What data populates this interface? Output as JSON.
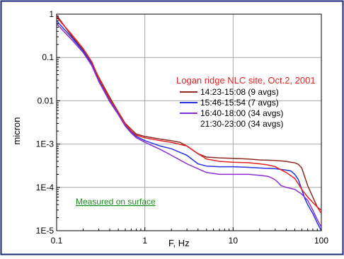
{
  "chart_data": {
    "type": "line",
    "title": "Logan ridge NLC site, Oct.2, 2001",
    "xlabel": "F, Hz",
    "ylabel": "micron",
    "xscale": "log",
    "yscale": "log",
    "xlim": [
      0.1,
      100
    ],
    "ylim": [
      1e-05,
      1
    ],
    "x_ticks": [
      {
        "value": 0.1,
        "label": "0.1"
      },
      {
        "value": 1,
        "label": "1"
      },
      {
        "value": 10,
        "label": "10"
      },
      {
        "value": 100,
        "label": "100"
      }
    ],
    "y_ticks": [
      {
        "value": 1,
        "label": "1"
      },
      {
        "value": 0.1,
        "label": "0.1"
      },
      {
        "value": 0.01,
        "label": "0.01"
      },
      {
        "value": 0.001,
        "label": "1E-3"
      },
      {
        "value": 0.0001,
        "label": "1E-4"
      },
      {
        "value": 1e-05,
        "label": "1E-5"
      }
    ],
    "grid": true,
    "legend_placement": "top-right",
    "annotation": "Measured on surface",
    "series": [
      {
        "name": "14:23-15:08 (9 avgs)",
        "color": "#8b2a22",
        "x": [
          0.1,
          0.15,
          0.2,
          0.25,
          0.3,
          0.4,
          0.5,
          0.6,
          0.7,
          0.8,
          1.0,
          1.5,
          2.0,
          2.5,
          3.0,
          4.0,
          5.0,
          7.0,
          10,
          15,
          20,
          30,
          40,
          45,
          50,
          55,
          60,
          70,
          80,
          90,
          100
        ],
        "y": [
          0.95,
          0.3,
          0.15,
          0.075,
          0.035,
          0.012,
          0.0055,
          0.003,
          0.0022,
          0.0017,
          0.0015,
          0.0013,
          0.0012,
          0.0011,
          0.0009,
          0.0006,
          0.0005,
          0.00048,
          0.00047,
          0.00045,
          0.00043,
          0.00042,
          0.0004,
          0.00038,
          0.00037,
          0.00034,
          0.00028,
          0.00011,
          6e-05,
          3.5e-05,
          3e-05
        ]
      },
      {
        "name": "15:46-15:54 (7 avgs)",
        "color": "#2833e0",
        "x": [
          0.1,
          0.15,
          0.2,
          0.25,
          0.3,
          0.4,
          0.5,
          0.6,
          0.7,
          0.8,
          1.0,
          1.5,
          2.0,
          3.0,
          4.0,
          5.0,
          7.0,
          10,
          15,
          20,
          30,
          40,
          45,
          50,
          55,
          60,
          65,
          70,
          80,
          90,
          100
        ],
        "y": [
          0.7,
          0.28,
          0.14,
          0.07,
          0.03,
          0.01,
          0.005,
          0.0027,
          0.0019,
          0.0015,
          0.0012,
          0.0009,
          0.00078,
          0.00055,
          0.00035,
          0.00031,
          0.0003,
          0.0003,
          0.00029,
          0.00028,
          0.00027,
          0.00025,
          0.00024,
          0.0002,
          0.00015,
          9e-05,
          5.5e-05,
          4e-05,
          2.5e-05,
          1.5e-05,
          1e-05
        ]
      },
      {
        "name": "16:40-18:00 (34 avgs)",
        "color": "#8a2fcf",
        "x": [
          0.1,
          0.15,
          0.2,
          0.25,
          0.3,
          0.4,
          0.5,
          0.6,
          0.7,
          0.8,
          1.0,
          1.5,
          2.0,
          3.0,
          4.0,
          5.0,
          7.0,
          10,
          15,
          20,
          25,
          30,
          35,
          40,
          50,
          60,
          70,
          80,
          90,
          100
        ],
        "y": [
          0.6,
          0.25,
          0.13,
          0.065,
          0.028,
          0.0095,
          0.0048,
          0.0026,
          0.0018,
          0.0014,
          0.0011,
          0.00075,
          0.00055,
          0.00035,
          0.00027,
          0.00022,
          0.0002,
          0.0002,
          0.0002,
          0.00019,
          0.00018,
          0.00015,
          0.00011,
          0.0001,
          9e-05,
          7e-05,
          5e-05,
          3e-05,
          1.8e-05,
          1.2e-05
        ]
      },
      {
        "name": "21:30-23:00 (34 avgs)",
        "color": "#e32222",
        "x": [
          0.1,
          0.15,
          0.2,
          0.25,
          0.3,
          0.4,
          0.5,
          0.6,
          0.7,
          0.8,
          1.0,
          1.5,
          2.0,
          3.0,
          4.0,
          5.0,
          7.0,
          10,
          15,
          20,
          25,
          30,
          40,
          50,
          55,
          60,
          70,
          80,
          90,
          100
        ],
        "y": [
          0.85,
          0.33,
          0.16,
          0.08,
          0.033,
          0.011,
          0.0055,
          0.0029,
          0.002,
          0.0016,
          0.0014,
          0.0012,
          0.0011,
          0.0009,
          0.0006,
          0.00045,
          0.0004,
          0.00038,
          0.00037,
          0.00035,
          0.00033,
          0.0003,
          0.00022,
          0.00016,
          0.00012,
          9e-05,
          6e-05,
          4.5e-05,
          3.5e-05,
          2.5e-05
        ]
      }
    ]
  },
  "legend_entries": [
    {
      "label": "14:23-15:08 (9 avgs)",
      "color": "#8b2a22"
    },
    {
      "label": "15:46-15:54 (7 avgs)",
      "color": "#2833e0"
    },
    {
      "label": "16:40-18:00 (34 avgs)",
      "color": "#8a2fcf"
    },
    {
      "label": "21:30-23:00 (34 avgs)",
      "color": ""
    }
  ],
  "colors": {
    "frame": "#1a2a7a",
    "title": "#e32222",
    "annotation": "#1a8a1a",
    "grid": "#a8a8a8",
    "axis": "#000000"
  }
}
